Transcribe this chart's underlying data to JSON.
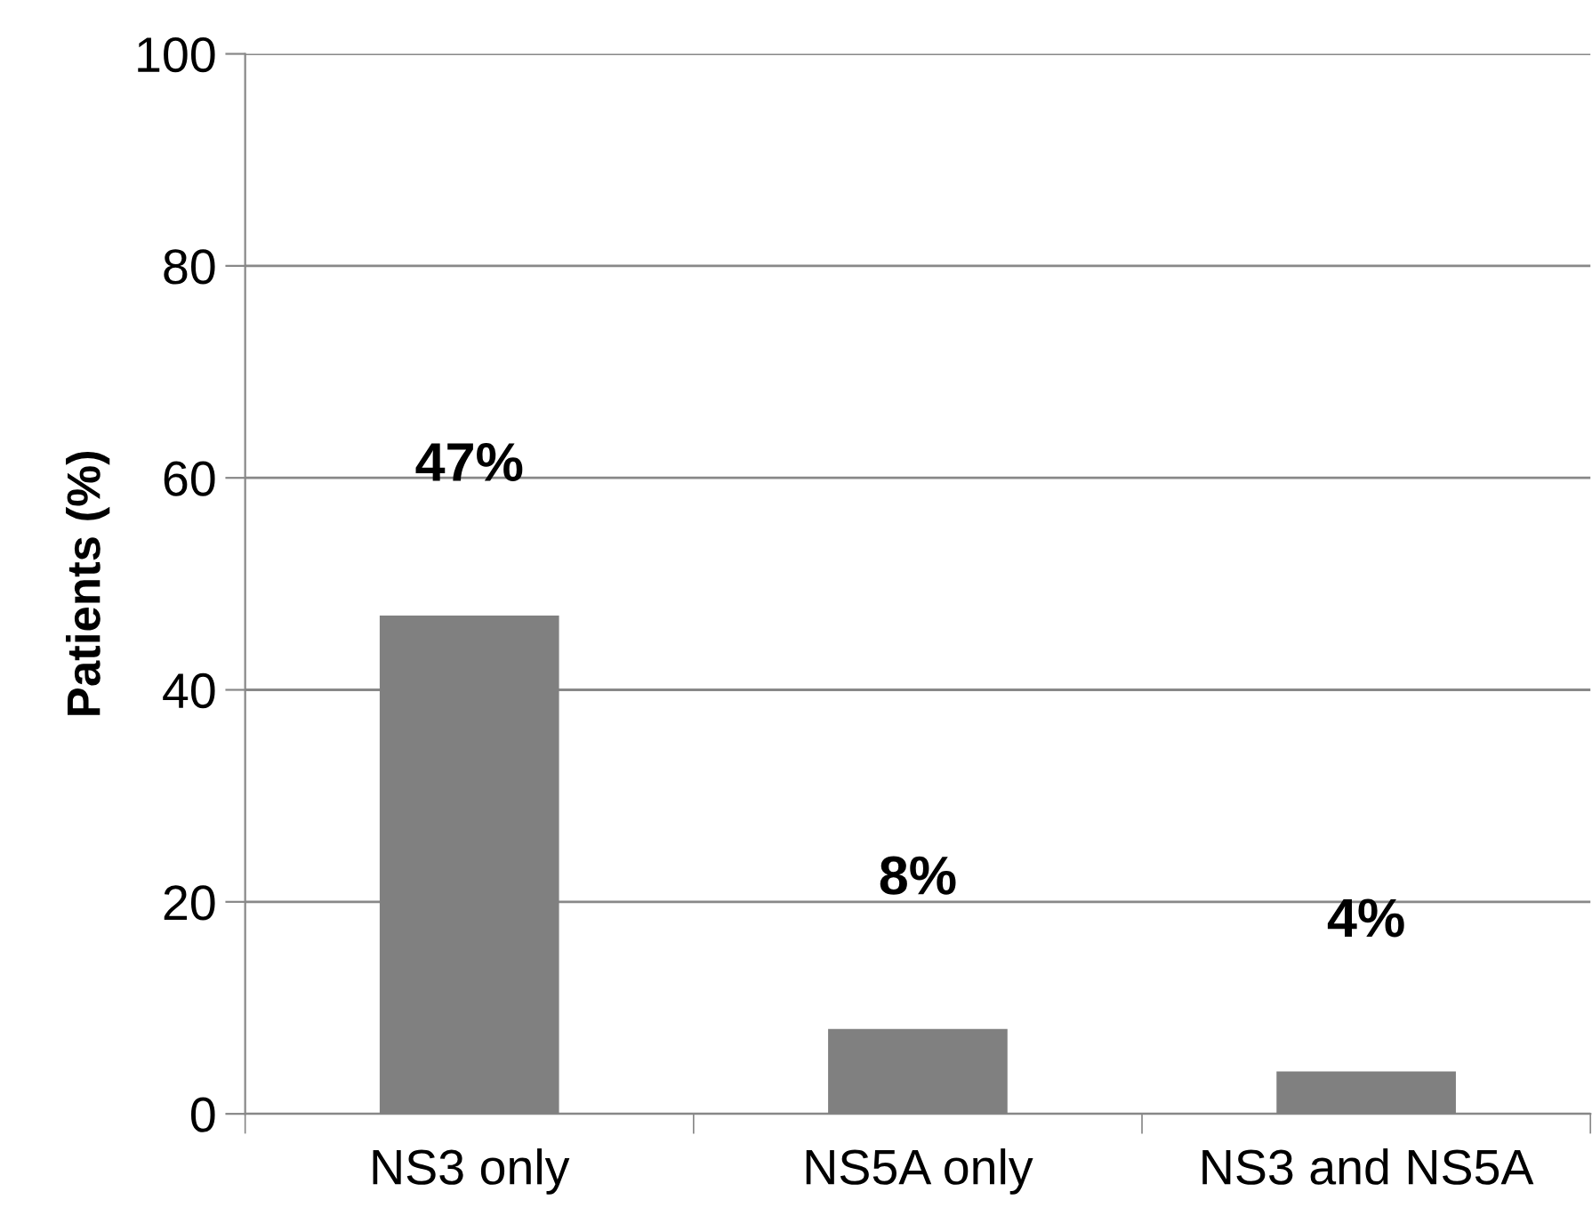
{
  "chart_data": {
    "type": "bar",
    "ylabel": "Patients (%)",
    "categories": [
      "NS3 only",
      "NS5A only",
      "NS3 and NS5A"
    ],
    "values": [
      47,
      8,
      4
    ],
    "value_labels": [
      "47%",
      "8%",
      "4%"
    ],
    "color": "#808080",
    "ylim": [
      0,
      100
    ],
    "yticks": [
      0,
      20,
      40,
      60,
      80,
      100
    ],
    "grid": "y"
  }
}
